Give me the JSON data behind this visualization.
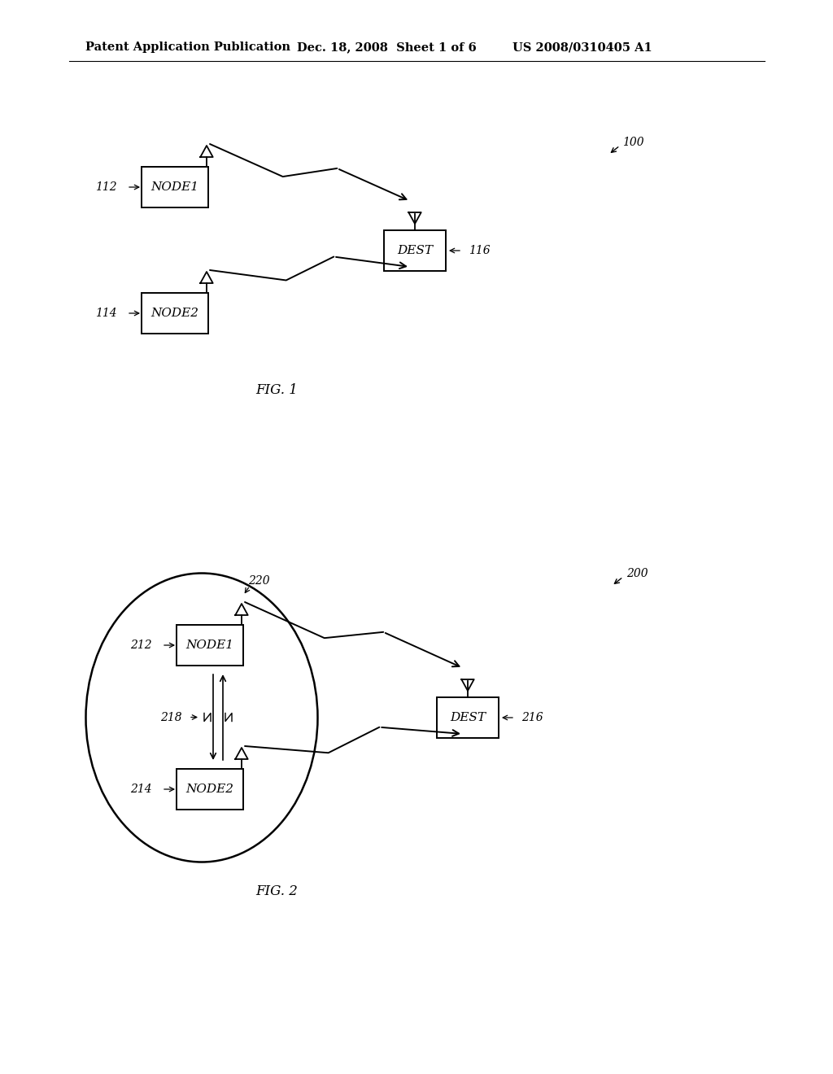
{
  "bg_color": "#ffffff",
  "header_left": "Patent Application Publication",
  "header_mid": "Dec. 18, 2008  Sheet 1 of 6",
  "header_right": "US 2008/0310405 A1",
  "fig1_label": "FIG. 1",
  "fig2_label": "FIG. 2",
  "ref100": "100",
  "ref112": "112",
  "ref114": "114",
  "ref116": "116",
  "ref200": "200",
  "ref212": "212",
  "ref214": "214",
  "ref216": "216",
  "ref218": "218",
  "ref220": "220",
  "node1_text": "NODE1",
  "node2_text": "NODE2",
  "dest_text": "DEST"
}
